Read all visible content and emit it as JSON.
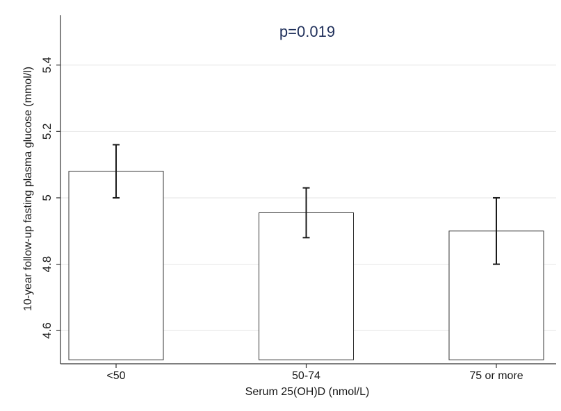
{
  "chart_data": {
    "type": "bar",
    "title": "",
    "annotation": "p=0.019",
    "xlabel": "Serum 25(OH)D (nmol/L)",
    "ylabel": "10-year follow-up fasting plasma glucose (mmol/l)",
    "categories": [
      "<50",
      "50-74",
      "75 or more"
    ],
    "values": [
      5.08,
      4.955,
      4.9
    ],
    "error_low": [
      5.0,
      4.88,
      4.8
    ],
    "error_high": [
      5.16,
      5.03,
      5.0
    ],
    "ylim": [
      4.5,
      5.55
    ],
    "yticks": [
      4.6,
      4.8,
      5,
      5.2,
      5.4
    ],
    "ytick_labels": [
      "4.6",
      "4.8",
      "5",
      "5.2",
      "5.4"
    ],
    "grid": true,
    "colors": {
      "bar_fill": "#ffffff",
      "bar_stroke": "#333333",
      "grid": "#e6e6e6",
      "annotation": "#1f2f5a"
    }
  }
}
